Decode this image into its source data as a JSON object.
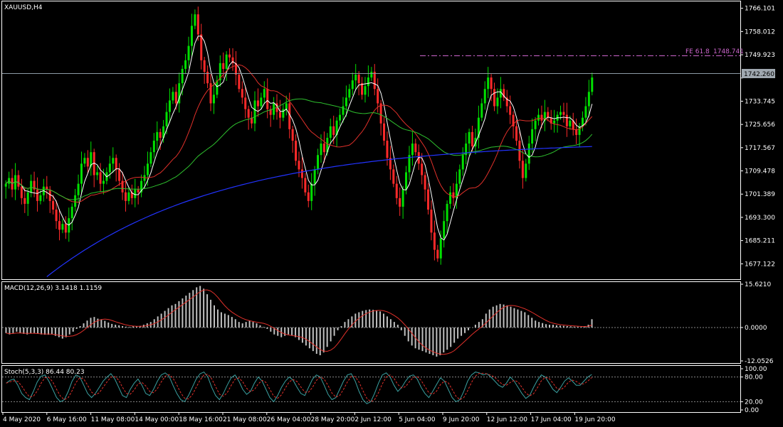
{
  "chart_data": {
    "type": "candlestick",
    "symbol_label": "XAUUSD,H4",
    "current_price": "1742.260",
    "fib_label": "FE 61.8",
    "fib_value": "1748.741",
    "price_ticks": [
      "1766.101",
      "1758.012",
      "1749.923",
      "1742.260",
      "1733.745",
      "1725.656",
      "1717.567",
      "1709.478",
      "1701.389",
      "1693.300",
      "1685.211",
      "1677.122"
    ],
    "price_ticks_values": [
      1766.101,
      1758.012,
      1749.923,
      1741.834,
      1733.745,
      1725.656,
      1717.567,
      1709.478,
      1701.389,
      1693.3,
      1685.211,
      1677.122
    ],
    "price_range": [
      1672.0,
      1768.0
    ],
    "macd_label": "MACD(12,26,9) 3.1418 1.1159",
    "macd_ticks": [
      "15.6210",
      "0.0000",
      "-12.0526"
    ],
    "macd_range": [
      -12.0526,
      15.621
    ],
    "stoch_label": "Stoch(5,3,3) 86.44 80.23",
    "stoch_ticks": [
      "100.00",
      "80.00",
      "20.00",
      "0.00"
    ],
    "time_ticks": [
      "4 May 2020",
      "6 May 16:00",
      "11 May 08:00",
      "14 May 00:00",
      "18 May 16:00",
      "21 May 08:00",
      "26 May 04:00",
      "28 May 20:00",
      "2 Jun 12:00",
      "5 Jun 04:00",
      "9 Jun 20:00",
      "12 Jun 12:00",
      "17 Jun 04:00",
      "19 Jun 20:00"
    ],
    "closes": [
      1705,
      1707,
      1703,
      1708,
      1704,
      1700,
      1698,
      1702,
      1706,
      1703,
      1699,
      1701,
      1704,
      1703,
      1699,
      1696,
      1692,
      1689,
      1691,
      1688,
      1693,
      1697,
      1701,
      1705,
      1712,
      1714,
      1711,
      1716,
      1708,
      1709,
      1705,
      1706,
      1709,
      1712,
      1714,
      1710,
      1706,
      1702,
      1699,
      1702,
      1700,
      1703,
      1702,
      1706,
      1708,
      1712,
      1716,
      1720,
      1723,
      1721,
      1725,
      1730,
      1734,
      1737,
      1733,
      1740,
      1745,
      1748,
      1753,
      1760,
      1764,
      1757,
      1748,
      1744,
      1740,
      1733,
      1736,
      1741,
      1747,
      1745,
      1750,
      1749,
      1747,
      1743,
      1738,
      1735,
      1731,
      1728,
      1726,
      1734,
      1732,
      1735,
      1738,
      1731,
      1729,
      1733,
      1730,
      1728,
      1731,
      1733,
      1724,
      1720,
      1713,
      1710,
      1707,
      1702,
      1699,
      1705,
      1710,
      1715,
      1719,
      1716,
      1721,
      1725,
      1722,
      1727,
      1729,
      1732,
      1735,
      1738,
      1741,
      1743,
      1740,
      1736,
      1739,
      1742,
      1744,
      1738,
      1733,
      1726,
      1720,
      1714,
      1710,
      1705,
      1700,
      1697,
      1703,
      1709,
      1715,
      1719,
      1716,
      1712,
      1708,
      1703,
      1696,
      1688,
      1682,
      1679,
      1686,
      1692,
      1698,
      1702,
      1700,
      1705,
      1710,
      1715,
      1719,
      1723,
      1718,
      1721,
      1728,
      1733,
      1738,
      1742,
      1738,
      1732,
      1735,
      1738,
      1735,
      1732,
      1729,
      1725,
      1720,
      1713,
      1707,
      1712,
      1719,
      1724,
      1727,
      1729,
      1727,
      1730,
      1728,
      1726,
      1727,
      1729,
      1730,
      1729,
      1725,
      1727,
      1724,
      1722,
      1725,
      1728,
      1732,
      1737,
      1742
    ],
    "macd_hist": [
      -2,
      -2.5,
      -2,
      -1.5,
      -2,
      -2.3,
      -2.5,
      -2.2,
      -2,
      -2.2,
      -2.5,
      -2.6,
      -2.6,
      -2.5,
      -3,
      -3.5,
      -4,
      -3.5,
      -2.5,
      -1.5,
      -0.5,
      0.5,
      1.5,
      2.5,
      3.5,
      3.8,
      3.2,
      2.8,
      2.4,
      1.8,
      1.3,
      1,
      0.8,
      0.5,
      0.3,
      0.2,
      0.4,
      0.5,
      0.6,
      1,
      1.5,
      2,
      3,
      4,
      5,
      6,
      7,
      8,
      8.5,
      9.5,
      10.5,
      11.5,
      12.5,
      13.5,
      14.5,
      15,
      14,
      12,
      10,
      8,
      6.5,
      5.5,
      5,
      4.5,
      3.8,
      3,
      2,
      1.5,
      2,
      2.5,
      2,
      1.5,
      0.8,
      0.2,
      -0.5,
      -1.5,
      -2.5,
      -3,
      -3.5,
      -3,
      -2.5,
      -2.8,
      -3.5,
      -4.5,
      -5.5,
      -6.5,
      -7.5,
      -8.5,
      -9.5,
      -10,
      -9,
      -7,
      -5,
      -3,
      -1,
      0.5,
      2,
      3,
      4,
      5,
      5.5,
      6,
      6.3,
      6.5,
      6.4,
      6.2,
      5.8,
      5,
      4,
      3,
      2,
      1,
      -1,
      -3,
      -5,
      -6.5,
      -7.5,
      -8,
      -8.5,
      -9,
      -9.5,
      -10,
      -10.5,
      -10,
      -9,
      -8,
      -7,
      -5.5,
      -4,
      -3,
      -2,
      -1,
      0,
      1,
      2,
      3,
      5,
      6.5,
      7.5,
      8,
      8.5,
      8.3,
      8,
      7.5,
      7,
      6.5,
      6,
      5.5,
      4.5,
      3.5,
      2.5,
      2,
      1.6,
      1.2,
      1,
      1,
      0.8,
      0.7,
      0.6,
      0.5,
      0.4,
      0.3,
      0.3,
      0.2,
      0.5,
      1,
      3
    ],
    "stoch_k": [
      65,
      72,
      75,
      60,
      40,
      30,
      25,
      45,
      68,
      82,
      85,
      70,
      50,
      30,
      20,
      25,
      45,
      70,
      85,
      80,
      60,
      40,
      30,
      40,
      55,
      70,
      80,
      88,
      75,
      55,
      35,
      30,
      50,
      65,
      75,
      60,
      40,
      35,
      50,
      70,
      85,
      90,
      82,
      60,
      40,
      25,
      20,
      35,
      55,
      75,
      88,
      92,
      80,
      55,
      35,
      25,
      40,
      60,
      78,
      85,
      70,
      50,
      38,
      45,
      65,
      80,
      70,
      50,
      30,
      20,
      35,
      55,
      70,
      80,
      72,
      55,
      40,
      35,
      55,
      75,
      85,
      80,
      60,
      38,
      25,
      30,
      50,
      70,
      85,
      88,
      70,
      45,
      25,
      15,
      20,
      40,
      65,
      85,
      90,
      80,
      60,
      45,
      55,
      70,
      82,
      85,
      75,
      55,
      40,
      30,
      45,
      62,
      78,
      70,
      50,
      30,
      20,
      25,
      45,
      70,
      85,
      92,
      90,
      85,
      88,
      80,
      70,
      60,
      55,
      65,
      80,
      70,
      55,
      40,
      28,
      35,
      55,
      72,
      85,
      80,
      65,
      50,
      42,
      55,
      70,
      78,
      70,
      60,
      60,
      70,
      80,
      86
    ]
  }
}
